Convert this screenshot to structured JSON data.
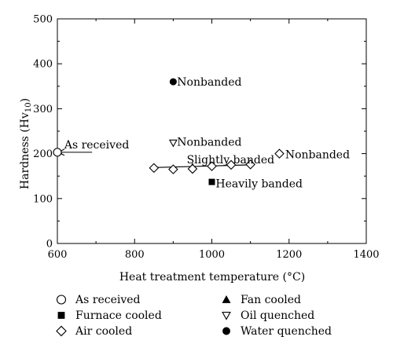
{
  "chart_data": {
    "type": "scatter",
    "xlabel": "Heat treatment temperature (°C)",
    "ylabel_base": "Hardness (Hv",
    "ylabel_sub": "10",
    "ylabel_end": ")",
    "xlim": [
      600,
      1400
    ],
    "ylim": [
      0,
      500
    ],
    "xticks": [
      "600",
      "800",
      "1000",
      "1200",
      "1400"
    ],
    "yticks": [
      "0",
      "100",
      "200",
      "300",
      "400",
      "500"
    ],
    "grid": false,
    "legend_position": "bottom",
    "series": [
      {
        "name": "As received",
        "marker": "circle-open",
        "points": [
          [
            600,
            203
          ]
        ]
      },
      {
        "name": "Fan cooled",
        "marker": "triangle-filled",
        "points": [
          [
            950,
            171
          ]
        ]
      },
      {
        "name": "Furnace cooled",
        "marker": "square-filled",
        "points": [
          [
            1000,
            137
          ]
        ]
      },
      {
        "name": "Oil quenched",
        "marker": "triangle-down-open",
        "points": [
          [
            900,
            224
          ]
        ]
      },
      {
        "name": "Air cooled",
        "marker": "diamond-open",
        "points": [
          [
            850,
            168
          ],
          [
            900,
            165
          ],
          [
            950,
            166
          ],
          [
            1000,
            172
          ],
          [
            1050,
            175
          ],
          [
            1100,
            176
          ],
          [
            1175,
            200
          ]
        ]
      },
      {
        "name": "Water quenched",
        "marker": "circle-filled",
        "points": [
          [
            900,
            360
          ]
        ]
      }
    ],
    "trend_line": {
      "x": [
        850,
        1100
      ],
      "y": [
        169,
        175
      ]
    },
    "annotations": [
      {
        "text": "Nonbanded",
        "x": 910,
        "y": 360
      },
      {
        "text": "Nonbanded",
        "x": 910,
        "y": 226
      },
      {
        "text": "Slightly banded",
        "x": 935,
        "y": 187
      },
      {
        "text": "Nonbanded",
        "x": 1190,
        "y": 198
      },
      {
        "text": "Heavily banded",
        "x": 1010,
        "y": 134
      },
      {
        "text": "As received",
        "x": 618,
        "y": 220
      }
    ],
    "as_received_arrow": {
      "from_x": 690,
      "to_x": 600,
      "y": 203
    }
  }
}
